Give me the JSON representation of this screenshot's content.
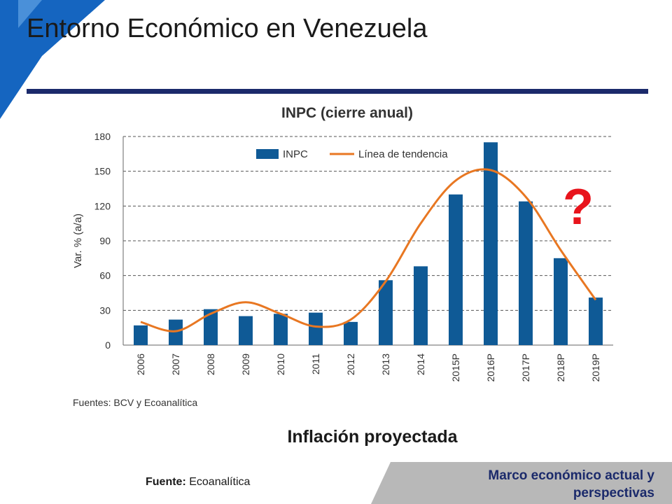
{
  "slide": {
    "title": "Entorno Económico en Venezuela",
    "subtitle": "Inflación proyectada",
    "source_label": "Fuente:",
    "source_value": "Ecoanalítica",
    "footer": "Marco económico actual y perspectivas",
    "question_mark": "?",
    "colors": {
      "accent_blue": "#1565c0",
      "rule": "#1b2a6b",
      "question": "#e8141c",
      "footer_bg": "#b8b8b8"
    }
  },
  "chart_data": {
    "type": "bar",
    "title": "INPC (cierre anual)",
    "ylabel": "Var. % (a/a)",
    "xlabel": "",
    "categories": [
      "2006",
      "2007",
      "2008",
      "2009",
      "2010",
      "2011",
      "2012",
      "2013",
      "2014",
      "2015P",
      "2016P",
      "2017P",
      "2018P",
      "2019P"
    ],
    "series": [
      {
        "name": "INPC",
        "type": "bar",
        "color": "#0f5a96",
        "values": [
          17,
          22,
          31,
          25,
          27,
          28,
          20,
          56,
          68,
          130,
          175,
          124,
          75,
          41
        ]
      },
      {
        "name": "Línea de tendencia",
        "type": "line",
        "color": "#e87722",
        "values": [
          20,
          12,
          27,
          37,
          27,
          16,
          22,
          55,
          105,
          142,
          151,
          128,
          82,
          39
        ]
      }
    ],
    "ylim": [
      0,
      180
    ],
    "yticks": [
      0,
      30,
      60,
      90,
      120,
      150,
      180
    ],
    "grid": true,
    "legend": "top",
    "note": "Fuentes: BCV y Ecoanalítica"
  }
}
